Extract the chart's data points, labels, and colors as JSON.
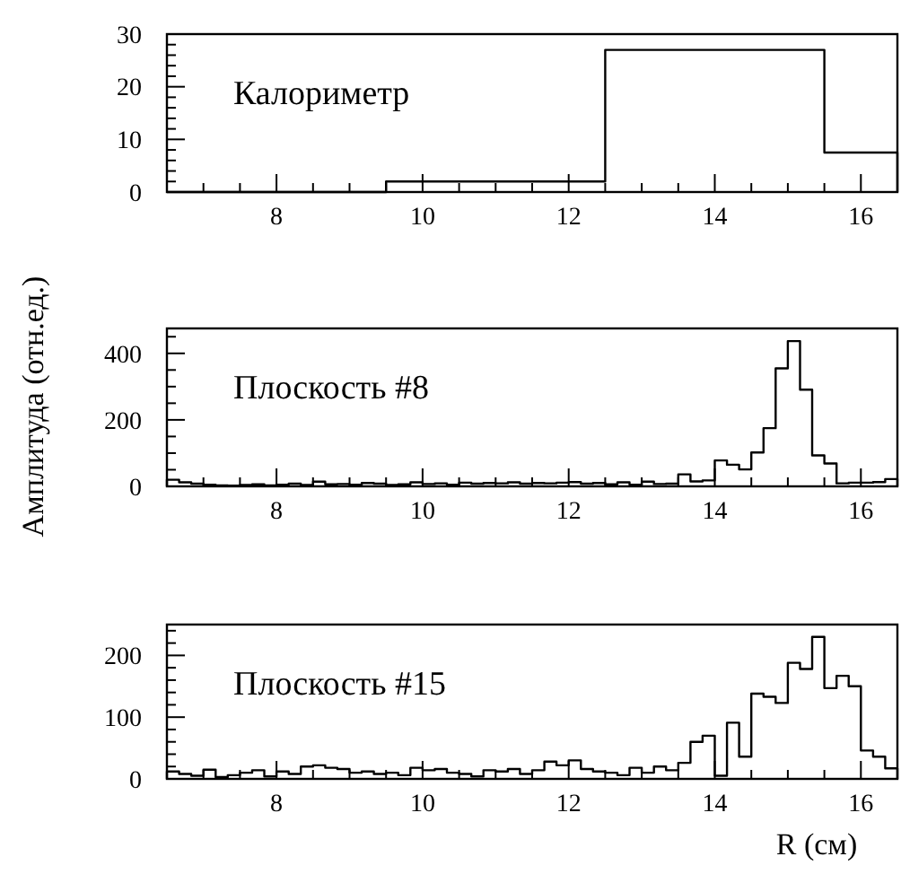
{
  "chart_data": [
    {
      "type": "histogram",
      "title": "Калориметр",
      "bins": [
        6.5,
        9.5,
        12.5,
        15.5,
        16.5
      ],
      "values": [
        0,
        2,
        27,
        7.5
      ],
      "color": "#000000",
      "xlim": [
        6.5,
        16.5
      ],
      "ylim": [
        0,
        30
      ],
      "xticks": [
        {
          "value": 7,
          "label": null
        },
        {
          "value": 7.5,
          "label": null
        },
        8,
        {
          "value": 8.5,
          "label": null
        },
        {
          "value": 9,
          "label": null
        },
        {
          "value": 9.5,
          "label": null
        },
        10,
        {
          "value": 10.5,
          "label": null
        },
        {
          "value": 11,
          "label": null
        },
        {
          "value": 11.5,
          "label": null
        },
        12,
        {
          "value": 12.5,
          "label": null
        },
        {
          "value": 13,
          "label": null
        },
        {
          "value": 13.5,
          "label": null
        },
        14,
        {
          "value": 14.5,
          "label": null
        },
        {
          "value": 15,
          "label": null
        },
        {
          "value": 15.5,
          "label": null
        },
        16
      ],
      "yticks": [
        0,
        {
          "value": 2,
          "label": null
        },
        {
          "value": 4,
          "label": null
        },
        {
          "value": 6,
          "label": null
        },
        {
          "value": 8,
          "label": null
        },
        10,
        {
          "value": 12,
          "label": null
        },
        {
          "value": 14,
          "label": null
        },
        {
          "value": 16,
          "label": null
        },
        {
          "value": 18,
          "label": null
        },
        20,
        {
          "value": 22,
          "label": null
        },
        {
          "value": 24,
          "label": null
        },
        {
          "value": 26,
          "label": null
        },
        {
          "value": 28,
          "label": null
        },
        30
      ]
    },
    {
      "type": "histogram",
      "title": "Плоскость #8",
      "ylabel": "Амплитуда (отн.ед.)",
      "bins": [
        6.5,
        6.667,
        6.833,
        7,
        7.167,
        7.333,
        7.5,
        7.667,
        7.833,
        8,
        8.167,
        8.333,
        8.5,
        8.667,
        8.833,
        9,
        9.167,
        9.333,
        9.5,
        9.667,
        9.833,
        10,
        10.167,
        10.333,
        10.5,
        10.667,
        10.833,
        11,
        11.167,
        11.333,
        11.5,
        11.667,
        11.833,
        12,
        12.167,
        12.333,
        12.5,
        12.667,
        12.833,
        13,
        13.167,
        13.333,
        13.5,
        13.667,
        13.833,
        14,
        14.167,
        14.333,
        14.5,
        14.667,
        14.833,
        15,
        15.167,
        15.333,
        15.5,
        15.667,
        15.833,
        16,
        16.167,
        16.333,
        16.5
      ],
      "values": [
        20,
        12,
        8,
        5,
        3,
        2,
        4,
        6,
        3,
        5,
        8,
        4,
        14,
        6,
        7,
        5,
        10,
        8,
        4,
        6,
        12,
        7,
        9,
        5,
        11,
        8,
        10,
        9,
        12,
        8,
        10,
        9,
        11,
        13,
        8,
        10,
        6,
        12,
        5,
        14,
        7,
        8,
        36,
        15,
        18,
        78,
        65,
        51,
        102,
        175,
        355,
        437,
        291,
        93,
        69,
        9,
        11,
        11,
        13,
        22
      ],
      "color": "#000000",
      "xlim": [
        6.5,
        16.5
      ],
      "ylim": [
        0,
        475
      ],
      "xticks": [
        {
          "value": 7,
          "label": null
        },
        {
          "value": 7.5,
          "label": null
        },
        8,
        {
          "value": 8.5,
          "label": null
        },
        {
          "value": 9,
          "label": null
        },
        {
          "value": 9.5,
          "label": null
        },
        10,
        {
          "value": 10.5,
          "label": null
        },
        {
          "value": 11,
          "label": null
        },
        {
          "value": 11.5,
          "label": null
        },
        12,
        {
          "value": 12.5,
          "label": null
        },
        {
          "value": 13,
          "label": null
        },
        {
          "value": 13.5,
          "label": null
        },
        14,
        {
          "value": 14.5,
          "label": null
        },
        {
          "value": 15,
          "label": null
        },
        {
          "value": 15.5,
          "label": null
        },
        16
      ],
      "yticks": [
        0,
        {
          "value": 50,
          "label": null
        },
        {
          "value": 100,
          "label": null
        },
        {
          "value": 150,
          "label": null
        },
        200,
        {
          "value": 250,
          "label": null
        },
        {
          "value": 300,
          "label": null
        },
        {
          "value": 350,
          "label": null
        },
        400,
        {
          "value": 450,
          "label": null
        }
      ]
    },
    {
      "type": "histogram",
      "title": "Плоскость #15",
      "xlabel": "R (см)",
      "bins": [
        6.5,
        6.667,
        6.833,
        7,
        7.167,
        7.333,
        7.5,
        7.667,
        7.833,
        8,
        8.167,
        8.333,
        8.5,
        8.667,
        8.833,
        9,
        9.167,
        9.333,
        9.5,
        9.667,
        9.833,
        10,
        10.167,
        10.333,
        10.5,
        10.667,
        10.833,
        11,
        11.167,
        11.333,
        11.5,
        11.667,
        11.833,
        12,
        12.167,
        12.333,
        12.5,
        12.667,
        12.833,
        13,
        13.167,
        13.333,
        13.5,
        13.667,
        13.833,
        14,
        14.167,
        14.333,
        14.5,
        14.667,
        14.833,
        15,
        15.167,
        15.333,
        15.5,
        15.667,
        15.833,
        16,
        16.167,
        16.333,
        16.5
      ],
      "values": [
        12,
        8,
        5,
        15,
        3,
        6,
        10,
        14,
        4,
        12,
        8,
        20,
        22,
        18,
        16,
        10,
        12,
        8,
        10,
        6,
        18,
        14,
        16,
        10,
        8,
        4,
        14,
        12,
        16,
        8,
        14,
        28,
        22,
        30,
        16,
        12,
        10,
        6,
        18,
        10,
        20,
        14,
        26,
        60,
        70,
        5,
        91,
        36,
        138,
        133,
        123,
        188,
        178,
        230,
        147,
        167,
        150,
        46,
        36,
        17
      ],
      "color": "#000000",
      "xlim": [
        6.5,
        16.5
      ],
      "ylim": [
        0,
        250
      ],
      "xticks": [
        {
          "value": 7,
          "label": null
        },
        {
          "value": 7.5,
          "label": null
        },
        8,
        {
          "value": 8.5,
          "label": null
        },
        {
          "value": 9,
          "label": null
        },
        {
          "value": 9.5,
          "label": null
        },
        10,
        {
          "value": 10.5,
          "label": null
        },
        {
          "value": 11,
          "label": null
        },
        {
          "value": 11.5,
          "label": null
        },
        12,
        {
          "value": 12.5,
          "label": null
        },
        {
          "value": 13,
          "label": null
        },
        {
          "value": 13.5,
          "label": null
        },
        14,
        {
          "value": 14.5,
          "label": null
        },
        {
          "value": 15,
          "label": null
        },
        {
          "value": 15.5,
          "label": null
        },
        16
      ],
      "yticks": [
        0,
        {
          "value": 20,
          "label": null
        },
        {
          "value": 40,
          "label": null
        },
        {
          "value": 60,
          "label": null
        },
        {
          "value": 80,
          "label": null
        },
        100,
        {
          "value": 120,
          "label": null
        },
        {
          "value": 140,
          "label": null
        },
        {
          "value": 160,
          "label": null
        },
        {
          "value": 180,
          "label": null
        },
        200,
        {
          "value": 220,
          "label": null
        },
        {
          "value": 240,
          "label": null
        }
      ]
    }
  ]
}
